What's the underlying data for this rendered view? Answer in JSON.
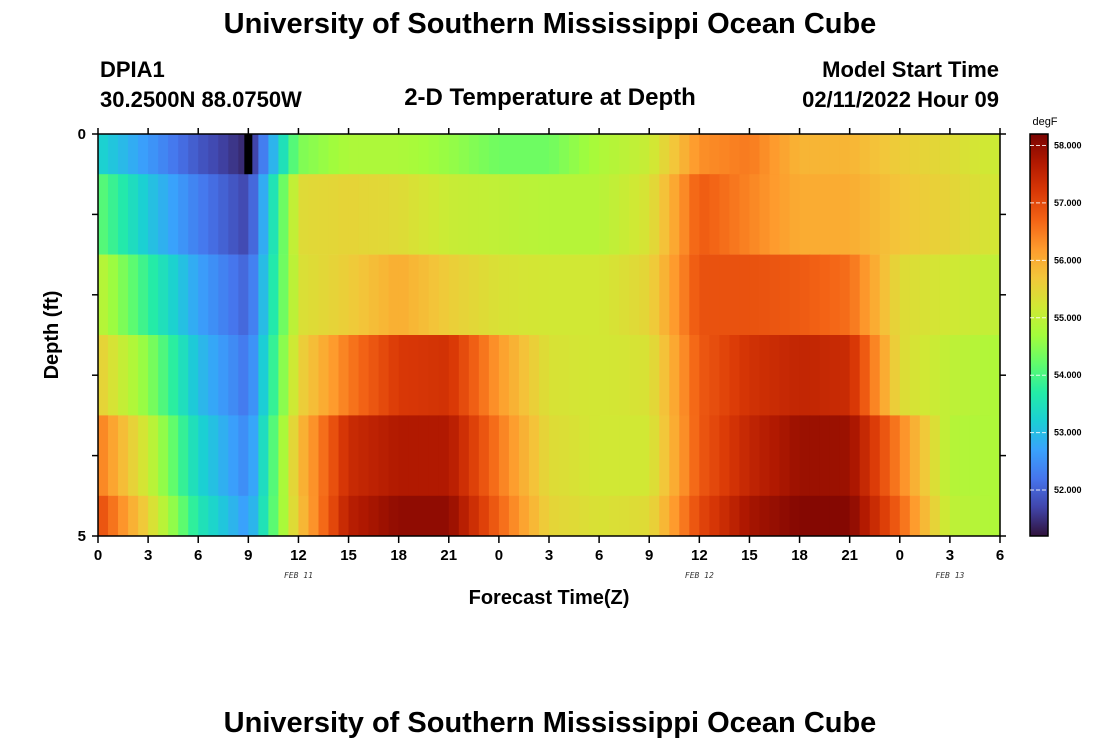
{
  "page": {
    "title": "University of Southern Mississippi Ocean Cube",
    "station_id": "DPIA1",
    "station_coords": "30.2500N  88.0750W",
    "plot_title": "2-D Temperature at Depth",
    "model_start_label": "Model Start Time",
    "model_start_value": "02/11/2022 Hour 09",
    "footer_title": "University of Southern Mississippi Ocean Cube"
  },
  "chart_data": {
    "type": "heatmap",
    "title": "2-D Temperature at Depth",
    "xlabel": "Forecast Time(Z)",
    "ylabel": "Depth (ft)",
    "x_range_hours": [
      0,
      54
    ],
    "x_ticks": [
      {
        "h": 0,
        "label": "0"
      },
      {
        "h": 3,
        "label": "3"
      },
      {
        "h": 6,
        "label": "6"
      },
      {
        "h": 9,
        "label": "9"
      },
      {
        "h": 12,
        "label": "12"
      },
      {
        "h": 15,
        "label": "15"
      },
      {
        "h": 18,
        "label": "18"
      },
      {
        "h": 21,
        "label": "21"
      },
      {
        "h": 24,
        "label": "0"
      },
      {
        "h": 27,
        "label": "3"
      },
      {
        "h": 30,
        "label": "6"
      },
      {
        "h": 33,
        "label": "9"
      },
      {
        "h": 36,
        "label": "12"
      },
      {
        "h": 39,
        "label": "15"
      },
      {
        "h": 42,
        "label": "18"
      },
      {
        "h": 45,
        "label": "21"
      },
      {
        "h": 48,
        "label": "0"
      },
      {
        "h": 51,
        "label": "3"
      },
      {
        "h": 54,
        "label": "6"
      }
    ],
    "date_labels": [
      {
        "h": 12,
        "label": "FEB 11"
      },
      {
        "h": 36,
        "label": "FEB 12"
      },
      {
        "h": 51,
        "label": "FEB 13"
      }
    ],
    "y_range": [
      0,
      5
    ],
    "y_tick_labels": [
      {
        "value": 0,
        "label": "0"
      },
      {
        "value": 5,
        "label": "5"
      }
    ],
    "colorbar": {
      "unit": "degF",
      "range": [
        51.2,
        58.2
      ],
      "ticks": [
        52.0,
        53.0,
        54.0,
        55.0,
        56.0,
        57.0,
        58.0
      ],
      "tick_labels": [
        "52.000",
        "53.000",
        "54.000",
        "55.000",
        "56.000",
        "57.000",
        "58.000"
      ]
    },
    "hours": [
      0,
      3,
      6,
      9,
      12,
      15,
      18,
      21,
      24,
      27,
      30,
      33,
      36,
      39,
      42,
      45,
      48,
      51,
      54
    ],
    "depth_bands": [
      {
        "depth": [
          0.0,
          0.5
        ],
        "temps": [
          53.3,
          52.6,
          51.9,
          51.4,
          54.4,
          54.8,
          54.8,
          54.6,
          54.3,
          54.3,
          54.8,
          55.1,
          56.3,
          56.5,
          55.9,
          55.9,
          55.6,
          55.4,
          55.1
        ]
      },
      {
        "depth": [
          0.5,
          1.5
        ],
        "temps": [
          54.2,
          53.1,
          52.3,
          51.7,
          55.4,
          55.5,
          55.4,
          55.1,
          55.0,
          54.9,
          54.9,
          55.3,
          56.8,
          56.4,
          56.0,
          56.0,
          55.7,
          55.5,
          55.2
        ]
      },
      {
        "depth": [
          1.5,
          2.5
        ],
        "temps": [
          55.0,
          53.8,
          52.7,
          52.0,
          55.3,
          55.6,
          56.0,
          55.6,
          55.3,
          55.2,
          55.2,
          55.5,
          56.9,
          56.9,
          56.8,
          56.6,
          55.4,
          55.2,
          55.0
        ]
      },
      {
        "depth": [
          2.5,
          3.5
        ],
        "temps": [
          55.6,
          54.5,
          53.0,
          52.2,
          55.5,
          56.5,
          57.2,
          57.3,
          56.2,
          55.3,
          55.2,
          55.3,
          56.8,
          57.3,
          57.5,
          57.4,
          55.4,
          55.0,
          54.8
        ]
      },
      {
        "depth": [
          3.5,
          4.5
        ],
        "temps": [
          56.5,
          55.1,
          53.3,
          52.4,
          55.8,
          57.4,
          57.7,
          57.7,
          56.5,
          55.4,
          55.2,
          55.2,
          56.8,
          57.5,
          57.9,
          57.9,
          56.4,
          54.9,
          54.8
        ]
      },
      {
        "depth": [
          4.5,
          5.0
        ],
        "temps": [
          57.0,
          55.5,
          53.6,
          52.6,
          55.7,
          57.6,
          58.0,
          58.0,
          56.7,
          55.5,
          55.3,
          55.4,
          57.0,
          57.8,
          58.1,
          58.1,
          56.7,
          55.0,
          54.8
        ]
      }
    ],
    "marker": {
      "h": 9,
      "depth": [
        0.0,
        0.5
      ],
      "color": "#000000"
    },
    "colormap": [
      "#30123b",
      "#4145ab",
      "#4675ed",
      "#39a2fc",
      "#1bcfd4",
      "#24eca6",
      "#61fc6c",
      "#a4fc3b",
      "#d1e834",
      "#f3c63a",
      "#fe9b2d",
      "#f36315",
      "#d93806",
      "#b11901",
      "#7a0402"
    ]
  }
}
